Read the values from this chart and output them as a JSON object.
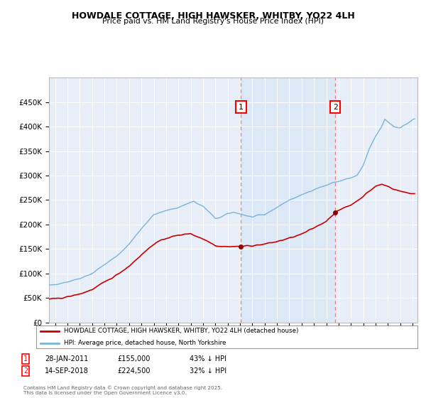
{
  "title": "HOWDALE COTTAGE, HIGH HAWSKER, WHITBY, YO22 4LH",
  "subtitle": "Price paid vs. HM Land Registry's House Price Index (HPI)",
  "background_color": "#e8eef8",
  "shaded_region_color": "#dce8f5",
  "ylim": [
    0,
    500000
  ],
  "yticks": [
    0,
    50000,
    100000,
    150000,
    200000,
    250000,
    300000,
    350000,
    400000,
    450000
  ],
  "xlim_start": 1995.5,
  "xlim_end": 2025.4,
  "xticks": [
    1996,
    1997,
    1998,
    1999,
    2000,
    2001,
    2002,
    2003,
    2004,
    2005,
    2006,
    2007,
    2008,
    2009,
    2010,
    2011,
    2012,
    2013,
    2014,
    2015,
    2016,
    2017,
    2018,
    2019,
    2020,
    2021,
    2022,
    2023,
    2024,
    2025
  ],
  "marker1_x": 2011.08,
  "marker1_y": 155000,
  "marker2_x": 2018.72,
  "marker2_y": 224500,
  "marker1_label": "1",
  "marker2_label": "2",
  "marker1_date": "28-JAN-2011",
  "marker1_price": "£155,000",
  "marker1_hpi": "43% ↓ HPI",
  "marker2_date": "14-SEP-2018",
  "marker2_price": "£224,500",
  "marker2_hpi": "32% ↓ HPI",
  "vline_color": "#e08080",
  "hpi_line_color": "#7ab3d8",
  "price_line_color": "#cc0000",
  "dot_color": "#8b0000",
  "legend_label_price": "HOWDALE COTTAGE, HIGH HAWSKER, WHITBY, YO22 4LH (detached house)",
  "legend_label_hpi": "HPI: Average price, detached house, North Yorkshire",
  "footnote": "Contains HM Land Registry data © Crown copyright and database right 2025.\nThis data is licensed under the Open Government Licence v3.0."
}
